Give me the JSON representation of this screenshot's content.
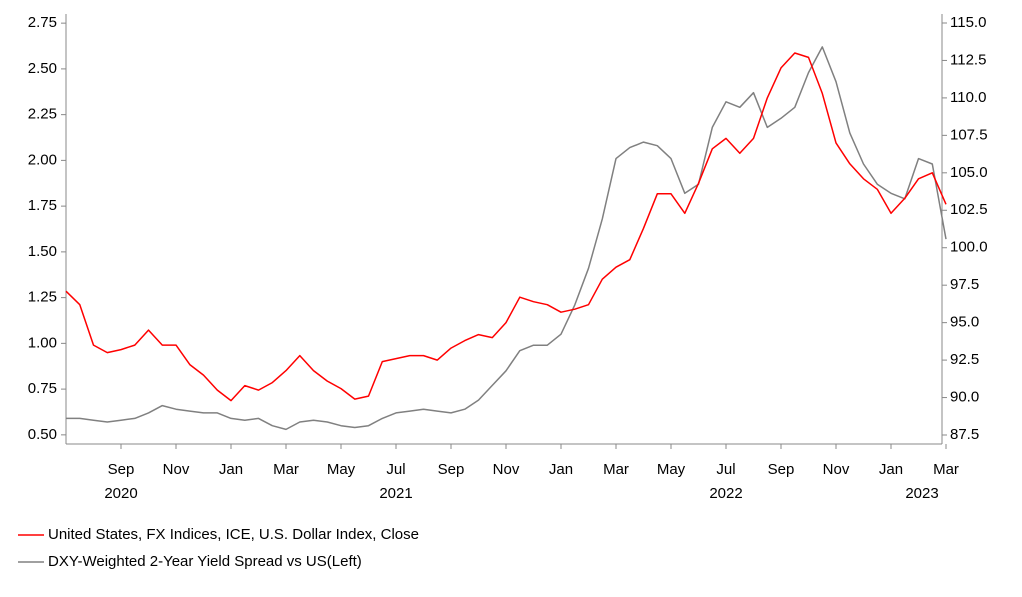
{
  "chart_data": {
    "type": "line",
    "categories": [
      null,
      null,
      null,
      null,
      "Sep",
      null,
      null,
      null,
      "Nov",
      null,
      null,
      null,
      "Jan",
      null,
      null,
      null,
      "Mar",
      null,
      null,
      null,
      "May",
      null,
      null,
      null,
      "Jul",
      null,
      null,
      null,
      "Sep",
      null,
      null,
      null,
      "Nov",
      null,
      null,
      null,
      "Jan",
      null,
      null,
      null,
      "Mar",
      null,
      null,
      null,
      "May",
      null,
      null,
      null,
      "Jul",
      null,
      null,
      null,
      "Sep",
      null,
      null,
      null,
      "Nov",
      null,
      null,
      null,
      "Jan",
      null,
      null,
      null,
      "Mar"
    ],
    "category_years": [
      null,
      null,
      null,
      null,
      "2020",
      null,
      null,
      null,
      null,
      null,
      null,
      null,
      null,
      null,
      null,
      null,
      null,
      null,
      null,
      null,
      null,
      null,
      null,
      null,
      "2021",
      null,
      null,
      null,
      null,
      null,
      null,
      null,
      null,
      null,
      null,
      null,
      null,
      null,
      null,
      null,
      null,
      null,
      null,
      null,
      null,
      null,
      null,
      null,
      "2022",
      null,
      null,
      null,
      null,
      null,
      null,
      null,
      null,
      null,
      null,
      null,
      null,
      null,
      null,
      null,
      "2023"
    ],
    "series": [
      {
        "name": "United States, FX Indices, ICE, U.S. Dollar Index, Close",
        "color": "#ff0000",
        "axis": "y2",
        "values": [
          97.1,
          96.2,
          93.5,
          93.0,
          93.2,
          93.5,
          94.5,
          93.5,
          93.5,
          92.2,
          91.5,
          90.5,
          89.8,
          90.8,
          90.5,
          91.0,
          91.8,
          92.8,
          91.8,
          91.1,
          90.6,
          89.9,
          90.1,
          92.4,
          92.6,
          92.8,
          92.8,
          92.5,
          93.3,
          93.8,
          94.2,
          94.0,
          95.0,
          96.7,
          96.4,
          96.2,
          95.7,
          95.9,
          96.2,
          97.9,
          98.7,
          99.2,
          101.3,
          103.6,
          103.6,
          102.3,
          104.3,
          106.6,
          107.3,
          106.3,
          107.3,
          110.0,
          112.0,
          113.0,
          112.7,
          110.3,
          107.0,
          105.6,
          104.6,
          103.9,
          102.3,
          103.3,
          104.6,
          105.0,
          102.9
        ]
      },
      {
        "name": "DXY-Weighted 2-Year Yield Spread vs US(Left)",
        "color": "#808080",
        "values": [
          0.59,
          0.59,
          0.58,
          0.57,
          0.58,
          0.59,
          0.62,
          0.66,
          0.64,
          0.63,
          0.62,
          0.62,
          0.59,
          0.58,
          0.59,
          0.55,
          0.53,
          0.57,
          0.58,
          0.57,
          0.55,
          0.54,
          0.55,
          0.59,
          0.62,
          0.63,
          0.64,
          0.63,
          0.62,
          0.64,
          0.69,
          0.77,
          0.85,
          0.96,
          0.99,
          0.99,
          1.05,
          1.21,
          1.41,
          1.68,
          2.01,
          2.07,
          2.1,
          2.08,
          2.01,
          1.82,
          1.87,
          2.18,
          2.32,
          2.29,
          2.37,
          2.18,
          2.23,
          2.29,
          2.48,
          2.62,
          2.43,
          2.15,
          1.98,
          1.87,
          1.82,
          1.79,
          2.01,
          1.98,
          1.57
        ]
      }
    ],
    "ylim": [
      0.45,
      2.8
    ],
    "yticks": [
      {
        "value": 0.5,
        "label": "0.50"
      },
      {
        "value": 0.75,
        "label": "0.75"
      },
      {
        "value": 1,
        "label": "1.00"
      },
      {
        "value": 1.25,
        "label": "1.25"
      },
      {
        "value": 1.5,
        "label": "1.50"
      },
      {
        "value": 1.75,
        "label": "1.75"
      },
      {
        "value": 2,
        "label": "2.00"
      },
      {
        "value": 2.25,
        "label": "2.25"
      },
      {
        "value": 2.5,
        "label": "2.50"
      },
      {
        "value": 2.75,
        "label": "2.75"
      }
    ],
    "y2lim": [
      86.9,
      115.6
    ],
    "y2ticks": [
      87.5,
      {
        "value": 90,
        "label": "90.0"
      },
      92.5,
      {
        "value": 95,
        "label": "95.0"
      },
      97.5,
      {
        "value": 100,
        "label": "100.0"
      },
      102.5,
      {
        "value": 105,
        "label": "105.0"
      },
      107.5,
      {
        "value": 110,
        "label": "110.0"
      },
      112.5,
      {
        "value": 115,
        "label": "115.0"
      }
    ],
    "grid": false,
    "legend": "bottom-left"
  }
}
